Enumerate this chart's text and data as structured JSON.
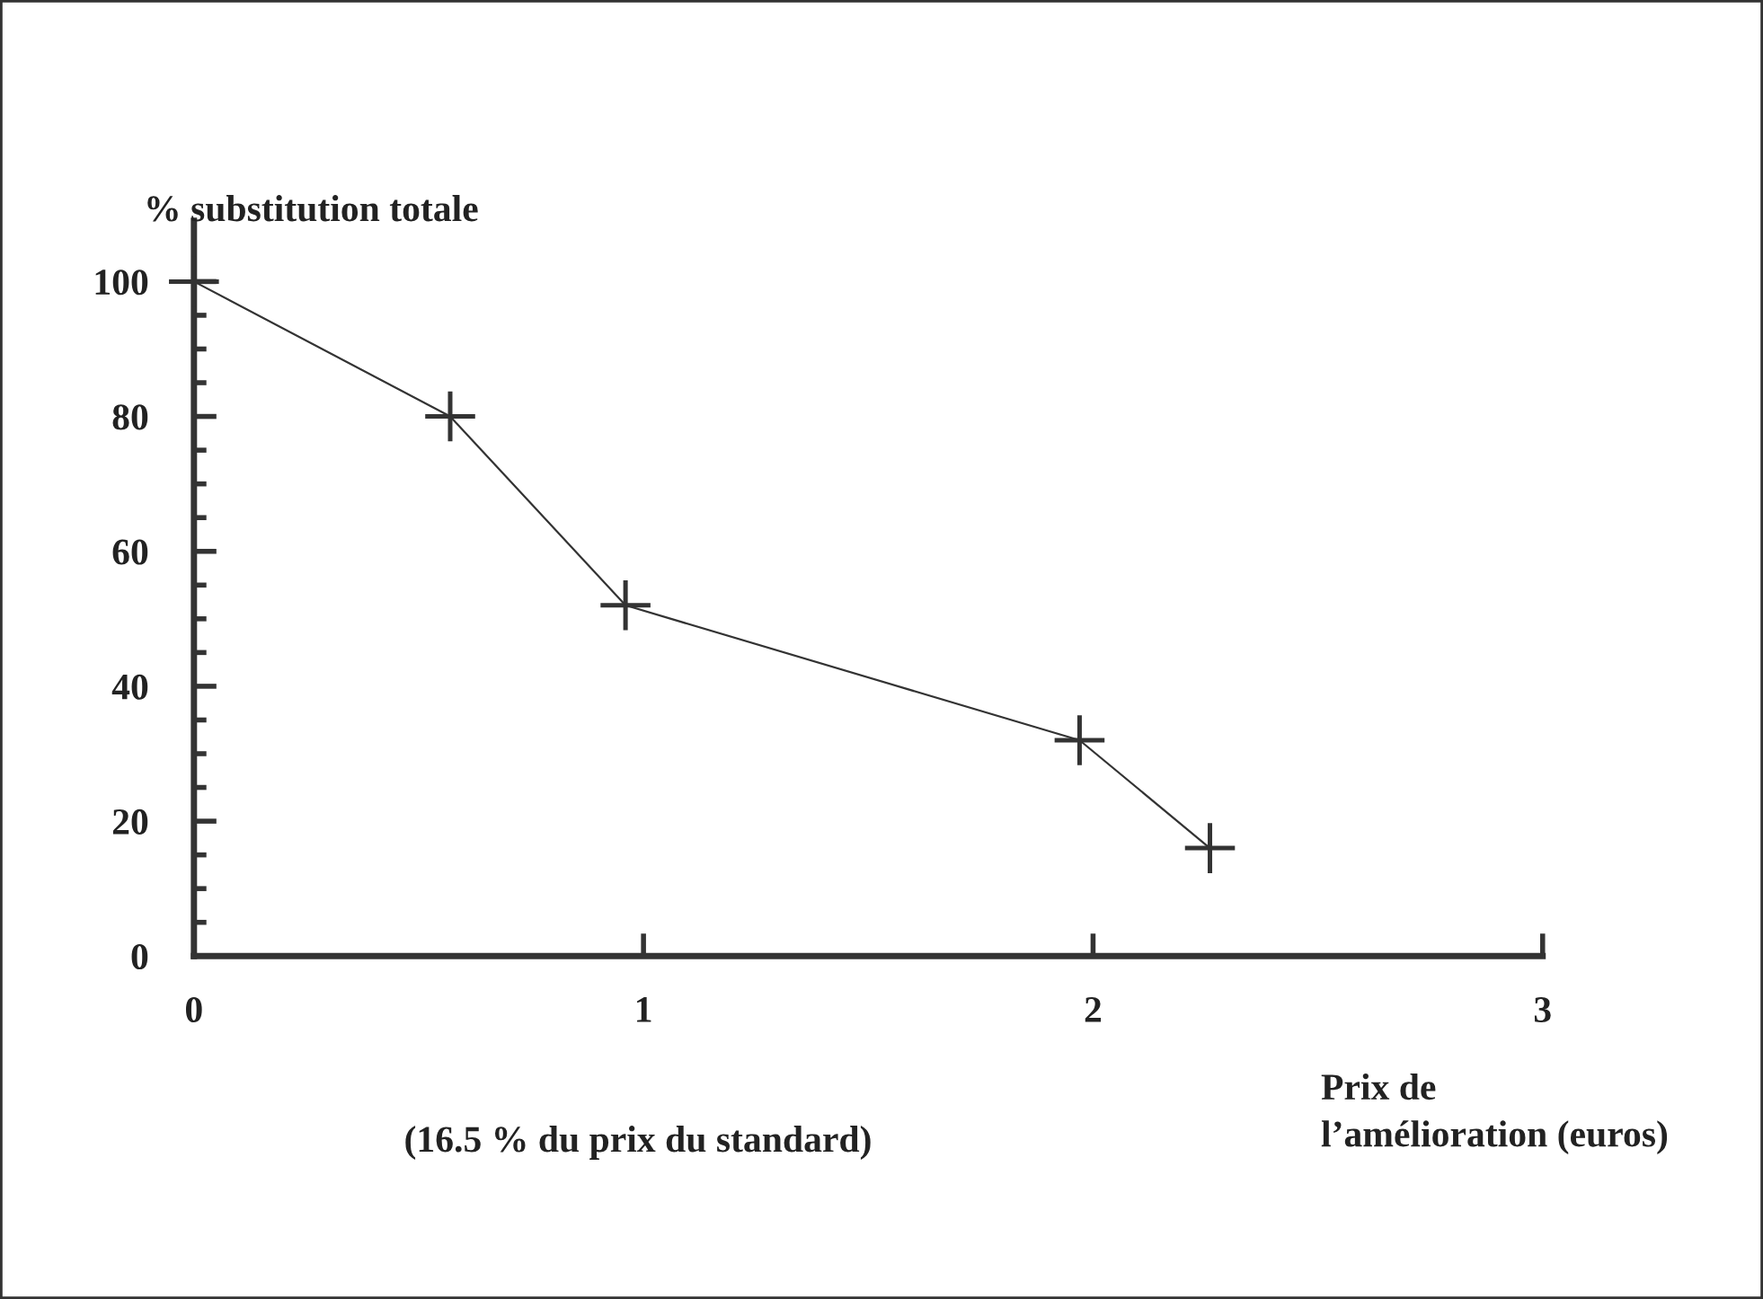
{
  "chart_data": {
    "type": "line",
    "ylabel": "% substitution totale",
    "xlabel": "Prix de\nl’amélioration (euros)",
    "annotations": [
      "(16.5 % du prix du standard)"
    ],
    "x": [
      0,
      0.57,
      0.96,
      1.97,
      2.26
    ],
    "series": [
      {
        "color": "#333333",
        "values": [
          100,
          80,
          52,
          32,
          16
        ]
      }
    ],
    "marker": "cross",
    "line_style": "solid",
    "xlim": [
      0,
      3
    ],
    "xticks": [
      0,
      1,
      2,
      3
    ],
    "ylim": [
      0,
      109
    ],
    "yticks": [
      0,
      20,
      40,
      60,
      80,
      100
    ],
    "grid": false,
    "legend": false
  }
}
